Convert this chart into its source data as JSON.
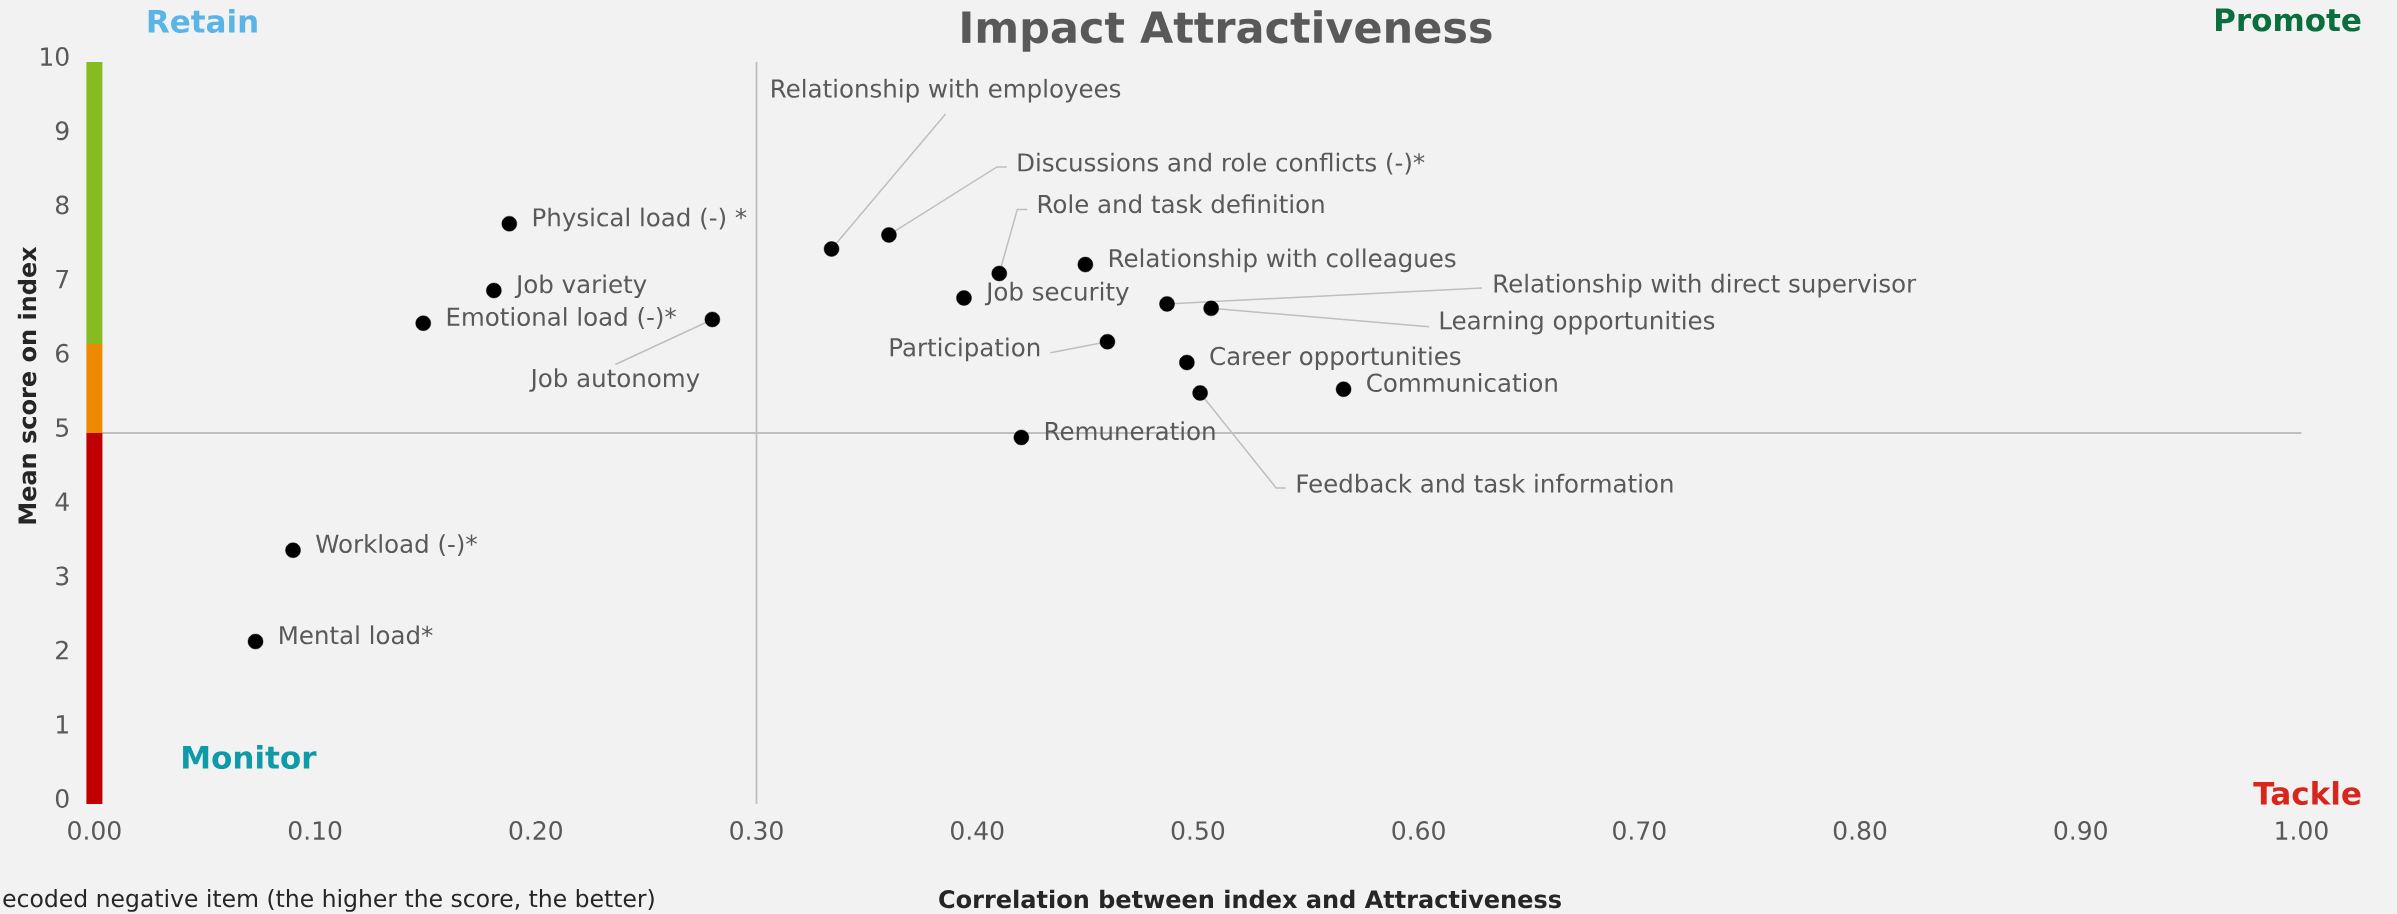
{
  "chart_data": {
    "type": "scatter",
    "title": "Impact Attractiveness",
    "xlabel": "Correlation between index and Attractiveness",
    "ylabel": "Mean score on index",
    "xlim": [
      0,
      1
    ],
    "ylim": [
      0,
      10
    ],
    "xticks": [
      {
        "value": 0,
        "label": "0.00"
      },
      {
        "value": 0.1,
        "label": "0.10"
      },
      {
        "value": 0.2,
        "label": "0.20"
      },
      {
        "value": 0.3,
        "label": "0.30"
      },
      {
        "value": 0.4,
        "label": "0.40"
      },
      {
        "value": 0.5,
        "label": "0.50"
      },
      {
        "value": 0.6,
        "label": "0.60"
      },
      {
        "value": 0.7,
        "label": "0.70"
      },
      {
        "value": 0.8,
        "label": "0.80"
      },
      {
        "value": 0.9,
        "label": "0.90"
      },
      {
        "value": 1,
        "label": "1.00"
      }
    ],
    "yticks": [
      0,
      1,
      2,
      3,
      4,
      5,
      6,
      7,
      8,
      9,
      10
    ],
    "marker": "circle",
    "stacked": true,
    "series": [
      {
        "name": "Physical load (-) *",
        "color": "#000000",
        "x": [
          0.188
        ],
        "values": [
          7.82
        ]
      },
      {
        "name": "Job variety",
        "color": "#000000",
        "x": [
          0.181
        ],
        "values": [
          6.92
        ]
      },
      {
        "name": "Emotional load (-)*",
        "color": "#000000",
        "x": [
          0.149
        ],
        "values": [
          6.48
        ]
      },
      {
        "name": "Job autonomy",
        "color": "#000000",
        "x": [
          0.28
        ],
        "values": [
          6.53
        ]
      },
      {
        "name": "Relationship with employees",
        "color": "#000000",
        "x": [
          0.334
        ],
        "values": [
          7.48
        ]
      },
      {
        "name": "Discussions and role conflicts (-)*",
        "color": "#000000",
        "x": [
          0.36
        ],
        "values": [
          7.67
        ]
      },
      {
        "name": "Role and task definition",
        "color": "#000000",
        "x": [
          0.41
        ],
        "values": [
          7.15
        ]
      },
      {
        "name": "Relationship with colleagues",
        "color": "#000000",
        "x": [
          0.449
        ],
        "values": [
          7.27
        ]
      },
      {
        "name": "Job security",
        "color": "#000000",
        "x": [
          0.394
        ],
        "values": [
          6.82
        ]
      },
      {
        "name": "Relationship with direct supervisor",
        "color": "#000000",
        "x": [
          0.486
        ],
        "values": [
          6.74
        ]
      },
      {
        "name": "Learning opportunities",
        "color": "#000000",
        "x": [
          0.506
        ],
        "values": [
          6.68
        ]
      },
      {
        "name": "Participation",
        "color": "#000000",
        "x": [
          0.459
        ],
        "values": [
          6.23
        ]
      },
      {
        "name": "Career opportunities",
        "color": "#000000",
        "x": [
          0.495
        ],
        "values": [
          5.95
        ]
      },
      {
        "name": "Communication",
        "color": "#000000",
        "x": [
          0.566
        ],
        "values": [
          5.59
        ]
      },
      {
        "name": "Feedback and task information",
        "color": "#000000",
        "x": [
          0.501
        ],
        "values": [
          5.54
        ]
      },
      {
        "name": "Remuneration",
        "color": "#000000",
        "x": [
          0.42
        ],
        "values": [
          4.94
        ]
      },
      {
        "name": "Workload (-)*",
        "color": "#000000",
        "x": [
          0.09
        ],
        "values": [
          3.42
        ]
      },
      {
        "name": "Mental load*",
        "color": "#000000",
        "x": [
          0.073
        ],
        "values": [
          2.19
        ]
      },
      {
        "type": "bar",
        "color": "#c00000",
        "x": [
          0
        ],
        "values": [
          5
        ]
      },
      {
        "type": "bar",
        "color": "#ee8a00",
        "x": [
          0
        ],
        "values": [
          1.2
        ]
      },
      {
        "type": "bar",
        "color": "#85bc22",
        "x": [
          0
        ],
        "values": [
          3.8
        ]
      }
    ],
    "ref_lines": [
      {
        "axis": "x",
        "value": 0.3,
        "color": "#bfbfbf"
      },
      {
        "axis": "y",
        "value": 5,
        "color": "#bfbfbf"
      }
    ],
    "annotations": [
      "Retain",
      "Promote",
      "Monitor",
      "Tackle",
      "ecoded negative item (the higher the score, the better)"
    ]
  }
}
